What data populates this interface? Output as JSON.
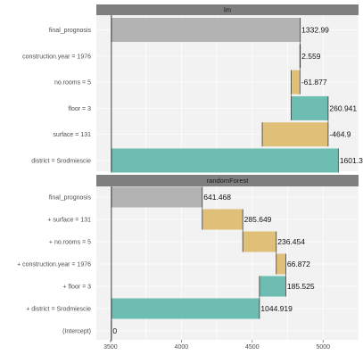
{
  "chart_data": [
    {
      "type": "bar",
      "subtype": "waterfall",
      "title": "lm",
      "xlim": [
        3400,
        5250
      ],
      "grid": true,
      "colors": {
        "positive": "#e0bf78",
        "negative": "#6dbdb2",
        "prediction": "#b3b3b3",
        "connector": "#3a3a3a"
      },
      "rows": [
        {
          "label": "final_prognosis",
          "start": 3506,
          "end": 4838.99,
          "value_label": "1332.99",
          "kind": "prediction"
        },
        {
          "label": "construction.year = 1976",
          "start": 4836.43,
          "end": 4838.99,
          "value_label": "2.559",
          "kind": "positive"
        },
        {
          "label": "no.rooms = 5",
          "start": 4774.55,
          "end": 4836.43,
          "value_label": "-61.877",
          "kind": "positive"
        },
        {
          "label": "floor = 3",
          "start": 4774.55,
          "end": 5035.49,
          "value_label": "260.941",
          "kind": "negative"
        },
        {
          "label": "surface = 131",
          "start": 4570.59,
          "end": 5035.49,
          "value_label": "-464.9",
          "kind": "positive"
        },
        {
          "label": "district = Srodmiescie",
          "start": 3506,
          "end": 5107.3,
          "value_label": "1601.3",
          "kind": "negative"
        }
      ]
    },
    {
      "type": "bar",
      "subtype": "waterfall",
      "title": "randomForest",
      "xlim": [
        3400,
        5250
      ],
      "xticks": [
        3500,
        4000,
        4500,
        5000
      ],
      "grid": true,
      "colors": {
        "positive": "#e0bf78",
        "negative": "#6dbdb2",
        "prediction": "#b3b3b3",
        "connector": "#3a3a3a"
      },
      "rows": [
        {
          "label": "final_prognosis",
          "start": 3506,
          "end": 4147.47,
          "value_label": "641.468",
          "kind": "prediction"
        },
        {
          "label": "+ surface = 131",
          "start": 4147.47,
          "end": 4433.12,
          "value_label": "285.649",
          "kind": "positive"
        },
        {
          "label": "+ no.rooms = 5",
          "start": 4433.12,
          "end": 4669.57,
          "value_label": "236.454",
          "kind": "positive"
        },
        {
          "label": "+ construction.year = 1976",
          "start": 4669.57,
          "end": 4736.44,
          "value_label": "66.872",
          "kind": "positive"
        },
        {
          "label": "+ floor = 3",
          "start": 4550.92,
          "end": 4736.44,
          "value_label": "185.525",
          "kind": "negative"
        },
        {
          "label": "+ district = Srodmiescie",
          "start": 3506,
          "end": 4550.92,
          "value_label": "1044.919",
          "kind": "negative"
        },
        {
          "label": "(Intercept)",
          "start": 3506,
          "end": 3506,
          "value_label": "0",
          "kind": "prediction"
        }
      ]
    }
  ]
}
